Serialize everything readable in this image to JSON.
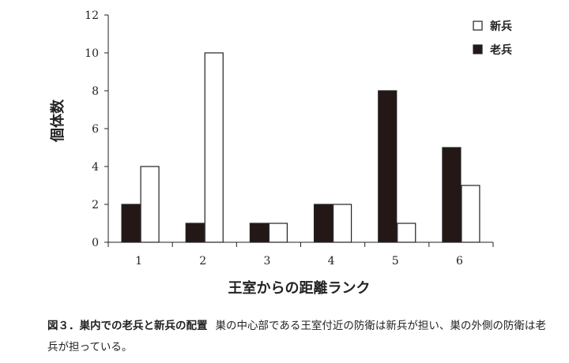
{
  "caption": {
    "label": "図３．巣内での老兵と新兵の配置",
    "text": "巣の中心部である王室付近の防衛は新兵が担い、巣の外側の防衛は老兵が担っている。"
  },
  "chart_data": {
    "type": "bar",
    "categories": [
      "1",
      "2",
      "3",
      "4",
      "5",
      "6"
    ],
    "series": [
      {
        "name": "老兵",
        "color": "#231815",
        "values": [
          2,
          1,
          1,
          2,
          8,
          5
        ]
      },
      {
        "name": "新兵",
        "color": "#ffffff",
        "values": [
          4,
          10,
          1,
          2,
          1,
          3
        ]
      }
    ],
    "xlabel": "王室からの距離ランク",
    "ylabel": "個体数",
    "ylim": [
      0,
      12
    ],
    "yticks": [
      "0",
      "2",
      "4",
      "6",
      "8",
      "10",
      "12"
    ],
    "legend": {
      "placement": "top-right",
      "entries": [
        {
          "label": "新兵",
          "series": 1
        },
        {
          "label": "老兵",
          "series": 0
        }
      ]
    },
    "grid": false
  }
}
